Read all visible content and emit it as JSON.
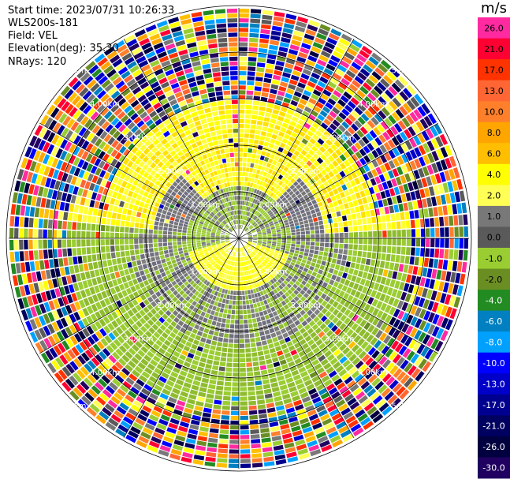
{
  "header": {
    "start_time": "Start time: 2023/07/31 10:26:33",
    "instrument": "WLS200s-181",
    "field": "Field: VEL",
    "elevation": "Elevation(deg): 35.30",
    "nrays": "NRays: 120"
  },
  "range_ring_labels": [
    "1.00km",
    "2.00km",
    "3.00km",
    "4.00km",
    "5.00km"
  ],
  "colorbar": {
    "unit": "m/s",
    "ticks": [
      "26.0",
      "21.0",
      "17.0",
      "13.0",
      "10.0",
      "8.0",
      "6.0",
      "4.0",
      "2.0",
      "1.0",
      "0.0",
      "-1.0",
      "-2.0",
      "-4.0",
      "-6.0",
      "-8.0",
      "-10.0",
      "-13.0",
      "-17.0",
      "-21.0",
      "-26.0",
      "-30.0"
    ],
    "colors": [
      "#ff2aa0",
      "#ff0033",
      "#ff3300",
      "#ff6633",
      "#ff7f2a",
      "#ffa500",
      "#ffbf00",
      "#ffff00",
      "#ffff55",
      "#787878",
      "#5a5a5a",
      "#9acd32",
      "#6b8e23",
      "#228b22",
      "#0080c0",
      "#00a0ff",
      "#0000ff",
      "#0000c8",
      "#000090",
      "#000060",
      "#000040",
      "#200060"
    ]
  }
}
